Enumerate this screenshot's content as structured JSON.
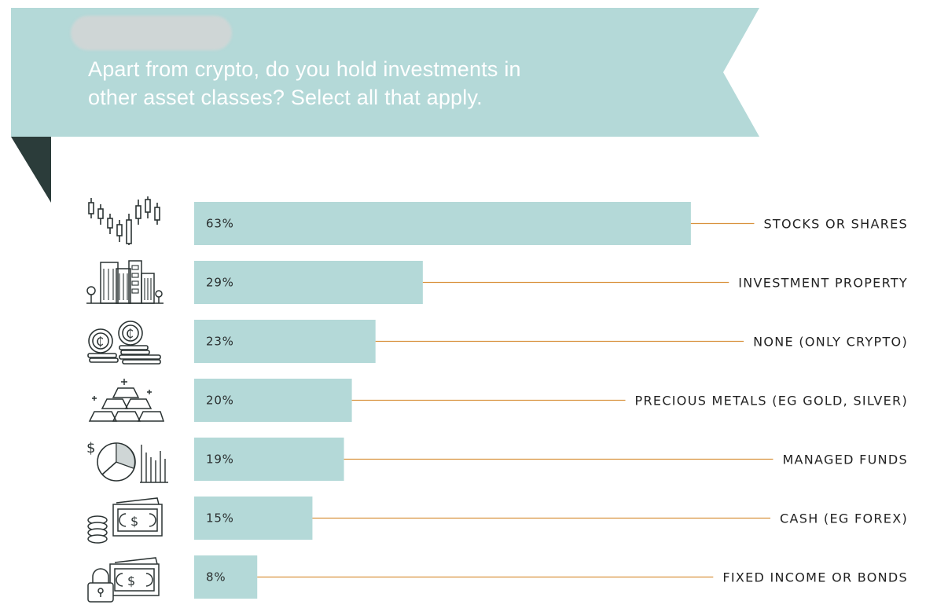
{
  "header": {
    "question_line1": "Apart from crypto, do you hold investments in",
    "question_line2": "other asset classes? Select all that apply."
  },
  "colors": {
    "banner": "#b4d9d8",
    "banner_fold": "#2b3c3a",
    "bar": "#b4d9d8",
    "leader_line": "#d9923e",
    "icon_stroke": "#2b3333"
  },
  "chart_data": {
    "type": "bar",
    "orientation": "horizontal",
    "unit": "%",
    "xlim": [
      0,
      100
    ],
    "grid": false,
    "legend": "none",
    "categories": [
      "STOCKS OR SHARES",
      "INVESTMENT PROPERTY",
      "NONE (ONLY CRYPTO)",
      "PRECIOUS METALS (EG GOLD, SILVER)",
      "MANAGED FUNDS",
      "CASH (EG FOREX)",
      "FIXED INCOME OR BONDS"
    ],
    "values": [
      63,
      29,
      23,
      20,
      19,
      15,
      8
    ],
    "value_labels": [
      "63%",
      "29%",
      "23%",
      "20%",
      "19%",
      "15%",
      "8%"
    ]
  },
  "icons": [
    "candlestick-chart-icon",
    "city-buildings-icon",
    "crypto-coins-icon",
    "gold-bars-icon",
    "pie-chart-funds-icon",
    "cash-coins-icon",
    "lock-banknotes-icon"
  ]
}
